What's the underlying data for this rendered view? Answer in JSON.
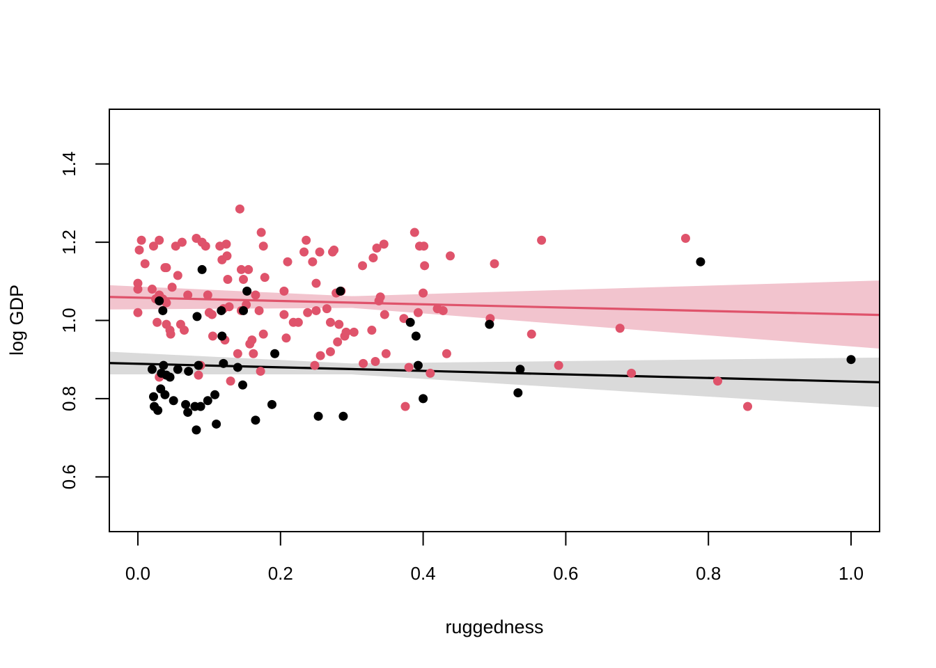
{
  "chart_data": {
    "type": "scatter",
    "title": "",
    "xlabel": "ruggedness",
    "ylabel": "log GDP",
    "xlim": [
      -0.04,
      1.04
    ],
    "ylim": [
      0.46,
      1.54
    ],
    "xticks": [
      "0.0",
      "0.2",
      "0.4",
      "0.6",
      "0.8",
      "1.0"
    ],
    "yticks": [
      "0.6",
      "0.8",
      "1.0",
      "1.2",
      "1.4"
    ],
    "grid": false,
    "legend": "none",
    "series": [
      {
        "color": "#DF536B",
        "band_color": "#F2C4CE",
        "fit_line": {
          "x": [
            -0.04,
            1.04
          ],
          "y": [
            1.06,
            1.014
          ]
        },
        "band": {
          "x": [
            -0.04,
            0.3,
            1.04
          ],
          "upper": [
            1.09,
            1.062,
            1.102
          ],
          "lower": [
            1.028,
            1.032,
            0.928
          ]
        },
        "points": [
          [
            0.0,
            1.095
          ],
          [
            0.0,
            1.08
          ],
          [
            0.0,
            1.02
          ],
          [
            0.002,
            1.18
          ],
          [
            0.005,
            1.205
          ],
          [
            0.01,
            1.145
          ],
          [
            0.02,
            1.08
          ],
          [
            0.022,
            1.19
          ],
          [
            0.025,
            1.055
          ],
          [
            0.027,
            0.995
          ],
          [
            0.03,
            1.205
          ],
          [
            0.03,
            1.065
          ],
          [
            0.03,
            0.855
          ],
          [
            0.035,
            1.055
          ],
          [
            0.038,
            1.135
          ],
          [
            0.04,
            1.135
          ],
          [
            0.04,
            1.045
          ],
          [
            0.04,
            0.99
          ],
          [
            0.045,
            0.975
          ],
          [
            0.046,
            0.965
          ],
          [
            0.048,
            1.085
          ],
          [
            0.053,
            1.19
          ],
          [
            0.056,
            1.115
          ],
          [
            0.06,
            0.99
          ],
          [
            0.062,
            1.2
          ],
          [
            0.065,
            0.975
          ],
          [
            0.07,
            1.065
          ],
          [
            0.082,
            1.21
          ],
          [
            0.085,
            0.86
          ],
          [
            0.088,
            0.885
          ],
          [
            0.09,
            1.2
          ],
          [
            0.095,
            1.19
          ],
          [
            0.098,
            1.065
          ],
          [
            0.1,
            1.02
          ],
          [
            0.104,
            1.015
          ],
          [
            0.105,
            0.96
          ],
          [
            0.115,
            1.19
          ],
          [
            0.118,
            1.155
          ],
          [
            0.12,
            1.03
          ],
          [
            0.122,
            0.95
          ],
          [
            0.124,
            1.195
          ],
          [
            0.125,
            1.165
          ],
          [
            0.126,
            1.105
          ],
          [
            0.128,
            1.035
          ],
          [
            0.13,
            0.845
          ],
          [
            0.14,
            0.915
          ],
          [
            0.143,
            1.285
          ],
          [
            0.145,
            1.13
          ],
          [
            0.145,
            1.025
          ],
          [
            0.148,
            1.105
          ],
          [
            0.152,
            1.04
          ],
          [
            0.155,
            1.13
          ],
          [
            0.157,
            0.94
          ],
          [
            0.16,
            0.95
          ],
          [
            0.162,
            0.915
          ],
          [
            0.165,
            1.065
          ],
          [
            0.17,
            1.025
          ],
          [
            0.172,
            0.87
          ],
          [
            0.173,
            1.225
          ],
          [
            0.176,
            1.19
          ],
          [
            0.176,
            0.965
          ],
          [
            0.178,
            1.11
          ],
          [
            0.205,
            1.075
          ],
          [
            0.205,
            1.015
          ],
          [
            0.208,
            0.955
          ],
          [
            0.21,
            1.15
          ],
          [
            0.218,
            0.995
          ],
          [
            0.225,
            0.995
          ],
          [
            0.233,
            1.175
          ],
          [
            0.236,
            1.205
          ],
          [
            0.238,
            1.02
          ],
          [
            0.245,
            1.15
          ],
          [
            0.248,
            0.885
          ],
          [
            0.25,
            1.025
          ],
          [
            0.25,
            1.095
          ],
          [
            0.255,
            1.175
          ],
          [
            0.256,
            0.91
          ],
          [
            0.265,
            1.03
          ],
          [
            0.27,
            0.92
          ],
          [
            0.27,
            0.995
          ],
          [
            0.273,
            1.175
          ],
          [
            0.275,
            1.18
          ],
          [
            0.278,
            1.07
          ],
          [
            0.28,
            0.945
          ],
          [
            0.282,
            0.99
          ],
          [
            0.285,
            1.075
          ],
          [
            0.29,
            0.96
          ],
          [
            0.292,
            0.97
          ],
          [
            0.303,
            0.97
          ],
          [
            0.315,
            1.14
          ],
          [
            0.316,
            0.89
          ],
          [
            0.328,
            0.975
          ],
          [
            0.33,
            1.16
          ],
          [
            0.333,
            0.895
          ],
          [
            0.335,
            1.185
          ],
          [
            0.338,
            1.05
          ],
          [
            0.34,
            1.06
          ],
          [
            0.345,
            1.195
          ],
          [
            0.346,
            1.015
          ],
          [
            0.348,
            0.915
          ],
          [
            0.373,
            1.005
          ],
          [
            0.375,
            0.78
          ],
          [
            0.38,
            0.88
          ],
          [
            0.388,
            1.225
          ],
          [
            0.393,
            1.02
          ],
          [
            0.395,
            1.19
          ],
          [
            0.4,
            1.07
          ],
          [
            0.401,
            1.19
          ],
          [
            0.402,
            1.14
          ],
          [
            0.41,
            0.865
          ],
          [
            0.42,
            1.03
          ],
          [
            0.428,
            1.025
          ],
          [
            0.433,
            0.915
          ],
          [
            0.438,
            1.165
          ],
          [
            0.494,
            1.005
          ],
          [
            0.5,
            1.145
          ],
          [
            0.552,
            0.965
          ],
          [
            0.566,
            1.205
          ],
          [
            0.59,
            0.885
          ],
          [
            0.676,
            0.98
          ],
          [
            0.692,
            0.865
          ],
          [
            0.768,
            1.21
          ],
          [
            0.813,
            0.845
          ],
          [
            0.855,
            0.78
          ]
        ]
      },
      {
        "color": "#000000",
        "band_color": "#DADADA",
        "fit_line": {
          "x": [
            -0.04,
            1.04
          ],
          "y": [
            0.891,
            0.842
          ]
        },
        "band": {
          "x": [
            -0.04,
            0.3,
            1.04
          ],
          "upper": [
            0.92,
            0.89,
            0.905
          ],
          "lower": [
            0.862,
            0.862,
            0.778
          ]
        },
        "points": [
          [
            0.02,
            0.875
          ],
          [
            0.022,
            0.805
          ],
          [
            0.023,
            0.78
          ],
          [
            0.028,
            0.77
          ],
          [
            0.03,
            1.05
          ],
          [
            0.032,
            0.825
          ],
          [
            0.033,
            0.865
          ],
          [
            0.035,
            1.025
          ],
          [
            0.036,
            0.885
          ],
          [
            0.038,
            0.81
          ],
          [
            0.04,
            0.86
          ],
          [
            0.045,
            0.855
          ],
          [
            0.05,
            0.795
          ],
          [
            0.056,
            0.875
          ],
          [
            0.067,
            0.785
          ],
          [
            0.07,
            0.765
          ],
          [
            0.071,
            0.87
          ],
          [
            0.08,
            0.78
          ],
          [
            0.082,
            0.72
          ],
          [
            0.083,
            1.01
          ],
          [
            0.085,
            0.885
          ],
          [
            0.088,
            0.78
          ],
          [
            0.09,
            1.13
          ],
          [
            0.098,
            0.795
          ],
          [
            0.108,
            0.81
          ],
          [
            0.11,
            0.735
          ],
          [
            0.117,
            1.025
          ],
          [
            0.118,
            0.96
          ],
          [
            0.12,
            0.89
          ],
          [
            0.14,
            0.88
          ],
          [
            0.147,
            0.835
          ],
          [
            0.148,
            1.025
          ],
          [
            0.153,
            1.075
          ],
          [
            0.165,
            0.745
          ],
          [
            0.188,
            0.785
          ],
          [
            0.192,
            0.915
          ],
          [
            0.253,
            0.755
          ],
          [
            0.284,
            1.075
          ],
          [
            0.288,
            0.755
          ],
          [
            0.382,
            0.995
          ],
          [
            0.39,
            0.96
          ],
          [
            0.393,
            0.885
          ],
          [
            0.4,
            0.8
          ],
          [
            0.493,
            0.99
          ],
          [
            0.533,
            0.815
          ],
          [
            0.536,
            0.875
          ],
          [
            0.789,
            1.15
          ],
          [
            1.0,
            0.9
          ]
        ]
      }
    ]
  }
}
